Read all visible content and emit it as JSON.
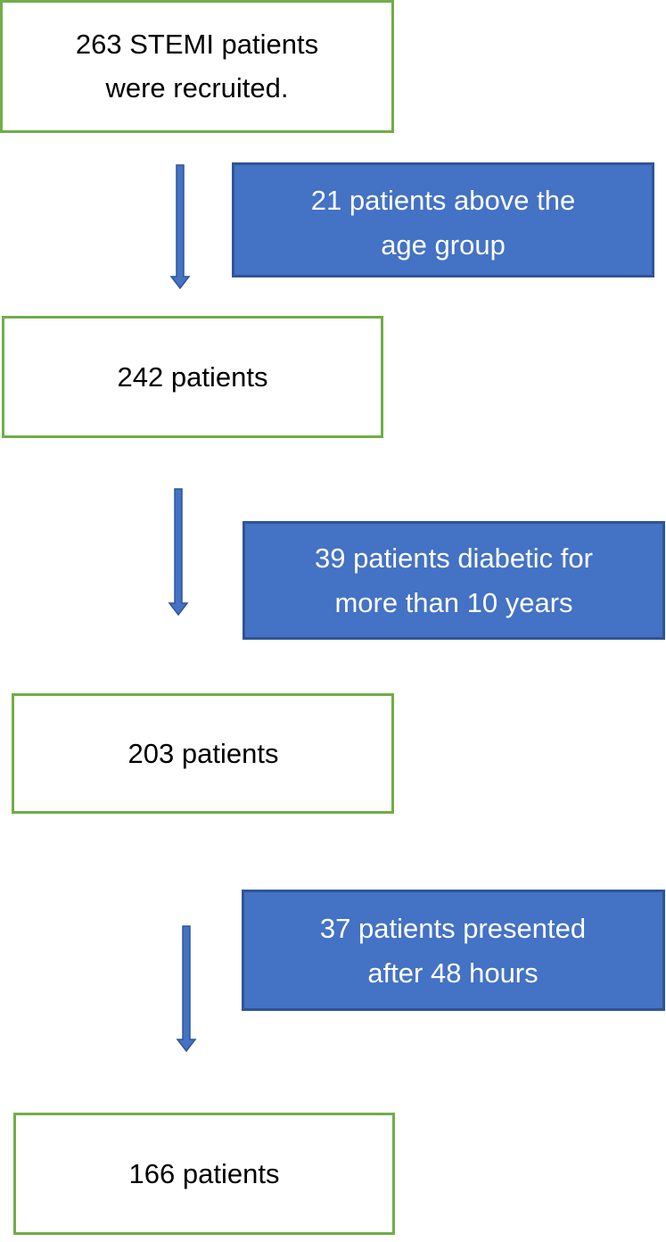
{
  "steps": [
    {
      "lines": [
        "263 STEMI patients",
        "were recruited."
      ]
    },
    {
      "lines": [
        "242 patients"
      ]
    },
    {
      "lines": [
        "203 patients"
      ]
    },
    {
      "lines": [
        "166 patients"
      ]
    }
  ],
  "exclusions": [
    {
      "lines": [
        "21 patients above the",
        "age group"
      ]
    },
    {
      "lines": [
        "39 patients diabetic for",
        "more than 10 years"
      ]
    },
    {
      "lines": [
        "37 patients presented",
        "after 48 hours"
      ]
    }
  ]
}
